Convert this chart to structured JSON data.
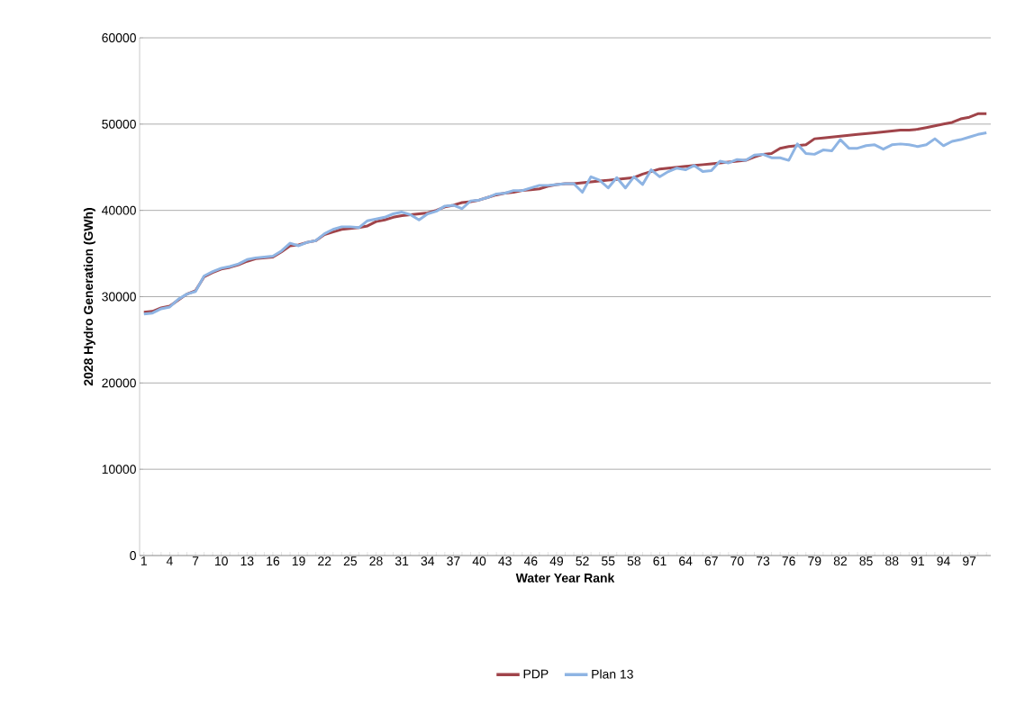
{
  "chart_data": {
    "type": "line",
    "xlabel": "Water Year Rank",
    "ylabel": "2028 Hydro Generation (GWh)",
    "categories": [
      "1",
      null,
      null,
      "4",
      null,
      null,
      "7",
      null,
      null,
      "10",
      null,
      null,
      "13",
      null,
      null,
      "16",
      null,
      null,
      "19",
      null,
      null,
      "22",
      null,
      null,
      "25",
      null,
      null,
      "28",
      null,
      null,
      "31",
      null,
      null,
      "34",
      null,
      null,
      "37",
      null,
      null,
      "40",
      null,
      null,
      "43",
      null,
      null,
      "46",
      null,
      null,
      "49",
      null,
      null,
      "52",
      null,
      null,
      "55",
      null,
      null,
      "58",
      null,
      null,
      "61",
      null,
      null,
      "64",
      null,
      null,
      "67",
      null,
      null,
      "70",
      null,
      null,
      "73",
      null,
      null,
      "76",
      null,
      null,
      "79",
      null,
      null,
      "82",
      null,
      null,
      "85",
      null,
      null,
      "88",
      null,
      null,
      "91",
      null,
      null,
      "94",
      null,
      null,
      "97",
      null,
      null
    ],
    "series": [
      {
        "name": "PDP",
        "color": "#a0444a",
        "values": [
          28200,
          28300,
          28700,
          28900,
          29600,
          30300,
          30700,
          32300,
          32800,
          33200,
          33400,
          33700,
          34100,
          34400,
          34500,
          34600,
          35200,
          35900,
          36000,
          36300,
          36500,
          37200,
          37500,
          37800,
          37900,
          38000,
          38200,
          38700,
          38900,
          39200,
          39400,
          39500,
          39600,
          39700,
          40000,
          40400,
          40600,
          40900,
          41000,
          41200,
          41500,
          41800,
          42000,
          42100,
          42300,
          42400,
          42500,
          42800,
          43000,
          43100,
          43100,
          43200,
          43300,
          43400,
          43500,
          43600,
          43700,
          43800,
          44200,
          44500,
          44800,
          44900,
          45000,
          45100,
          45200,
          45300,
          45400,
          45500,
          45600,
          45700,
          45800,
          46200,
          46500,
          46600,
          47200,
          47400,
          47500,
          47600,
          48300,
          48400,
          48500,
          48600,
          48700,
          48800,
          48900,
          49000,
          49100,
          49200,
          49300,
          49300,
          49400,
          49600,
          49800,
          50000,
          50200,
          50600,
          50800,
          51200,
          51200
        ]
      },
      {
        "name": "Plan 13",
        "color": "#8eb4e3",
        "values": [
          28000,
          28100,
          28600,
          28800,
          29700,
          30300,
          30600,
          32400,
          32900,
          33300,
          33500,
          33800,
          34300,
          34500,
          34600,
          34700,
          35300,
          36200,
          35900,
          36300,
          36500,
          37300,
          37800,
          38100,
          38100,
          38000,
          38800,
          39000,
          39200,
          39600,
          39800,
          39500,
          38900,
          39600,
          39900,
          40500,
          40600,
          40200,
          41100,
          41200,
          41500,
          41900,
          42000,
          42300,
          42300,
          42600,
          42900,
          42900,
          43000,
          43100,
          43100,
          42100,
          43900,
          43500,
          42600,
          43800,
          42600,
          43900,
          43000,
          44700,
          43900,
          44500,
          44900,
          44700,
          45200,
          44500,
          44600,
          45700,
          45500,
          45900,
          45800,
          46400,
          46500,
          46100,
          46100,
          45800,
          47700,
          46600,
          46500,
          47000,
          46900,
          48200,
          47200,
          47200,
          47500,
          47600,
          47100,
          47600,
          47700,
          47600,
          47400,
          47600,
          48300,
          47500,
          48000,
          48200,
          48500,
          48800,
          49000
        ]
      }
    ],
    "ylim": [
      0,
      60000
    ],
    "yticks": [
      0,
      10000,
      20000,
      30000,
      40000,
      50000,
      60000
    ],
    "grid": "y",
    "legend": "bottom",
    "marker": "none",
    "line_style": "solid"
  }
}
